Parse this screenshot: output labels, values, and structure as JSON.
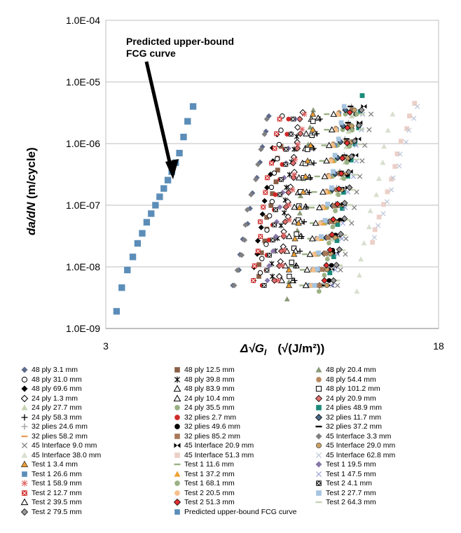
{
  "chart_data": {
    "type": "scatter",
    "title": "",
    "ylabel_italic": "da/dN",
    "ylabel_rest": " (m/cycle)",
    "xlabel_italic": "Δ√G",
    "xlabel_sub": "I",
    "xlabel_rest": "(√(J/m²))",
    "x_scale": "log",
    "y_scale": "log",
    "xlim": [
      3,
      18
    ],
    "ylim": [
      1e-09,
      0.0001
    ],
    "x_tick_labels": [
      "3",
      "18"
    ],
    "y_tick_labels": [
      "1.0E-09",
      "1.0E-08",
      "1.0E-07",
      "1.0E-06",
      "1.0E-05",
      "1.0E-04"
    ],
    "grid": "horizontal",
    "legend_position": "bottom",
    "annotation": {
      "line1": "Predicted upper-bound",
      "line2": "FCG curve"
    },
    "predicted_curve": {
      "name": "Predicted upper-bound FCG curve",
      "x": [
        3.18,
        3.27,
        3.37,
        3.47,
        3.56,
        3.65,
        3.74,
        3.83,
        3.92,
        4.01,
        4.1,
        4.19,
        4.28,
        4.37,
        4.46,
        4.56,
        4.66,
        4.8
      ],
      "y": [
        1.9e-09,
        4.6e-09,
        8.9e-09,
        1.45e-08,
        2.4e-08,
        3.5e-08,
        5.3e-08,
        7.3e-08,
        1e-07,
        1.37e-07,
        1.87e-07,
        2.55e-07,
        3.5e-07,
        4.9e-07,
        7e-07,
        1.28e-06,
        2.3e-06,
        4e-06
      ]
    },
    "series_ranges": [
      {
        "name": "48 ply 3.1 mm",
        "x": [
          6.0,
          7.2
        ],
        "y": [
          5e-09,
          2.8e-06
        ]
      },
      {
        "name": "48 ply 12.5 mm",
        "x": [
          6.8,
          7.7
        ],
        "y": [
          7e-09,
          9e-07
        ]
      },
      {
        "name": "48 ply 20.4 mm",
        "x": [
          7.9,
          9.2
        ],
        "y": [
          3e-09,
          3.5e-06
        ]
      },
      {
        "name": "48 ply 31.0 mm",
        "x": [
          6.9,
          7.8
        ],
        "y": [
          8e-09,
          2.8e-06
        ]
      },
      {
        "name": "48 ply 39.8 mm",
        "x": [
          7.3,
          8.4
        ],
        "y": [
          7e-09,
          1.3e-06
        ]
      },
      {
        "name": "48 ply 54.4 mm",
        "x": [
          9.0,
          10.5
        ],
        "y": [
          5e-09,
          3.2e-06
        ]
      },
      {
        "name": "48 ply 69.6 mm",
        "x": [
          6.6,
          7.5
        ],
        "y": [
          6e-09,
          1.4e-06
        ]
      },
      {
        "name": "48 ply 83.9 mm",
        "x": [
          7.8,
          9.0
        ],
        "y": [
          6e-09,
          2.5e-06
        ]
      },
      {
        "name": "48 ply 101.2 mm",
        "x": [
          8.0,
          9.2
        ],
        "y": [
          7e-09,
          2.3e-06
        ]
      },
      {
        "name": "24 ply 1.3 mm",
        "x": [
          7.6,
          8.6
        ],
        "y": [
          7e-09,
          3.2e-06
        ]
      },
      {
        "name": "24 ply 10.4 mm",
        "x": [
          8.2,
          9.4
        ],
        "y": [
          6e-09,
          2.6e-06
        ]
      },
      {
        "name": "24 ply 20.9 mm",
        "x": [
          7.5,
          8.6
        ],
        "y": [
          6e-09,
          2.5e-06
        ]
      },
      {
        "name": "24 ply 27.7 mm",
        "x": [
          9.6,
          11.3
        ],
        "y": [
          5e-09,
          2.8e-06
        ]
      },
      {
        "name": "24 ply 35.5 mm",
        "x": [
          9.2,
          10.8
        ],
        "y": [
          5e-09,
          3e-06
        ]
      },
      {
        "name": "24 plies 48.9 mm",
        "x": [
          10.0,
          12.0
        ],
        "y": [
          8e-09,
          6e-06
        ]
      },
      {
        "name": "24 ply 58.3 mm",
        "x": [
          8.3,
          9.5
        ],
        "y": [
          6e-09,
          2.5e-06
        ]
      },
      {
        "name": "32 plies 2.7 mm",
        "x": [
          7.0,
          8.0
        ],
        "y": [
          5e-09,
          2.5e-06
        ]
      },
      {
        "name": "32 plies 11.7 mm",
        "x": [
          9.4,
          11.0
        ],
        "y": [
          5e-09,
          3.5e-06
        ]
      },
      {
        "name": "32 plies 24.6 mm",
        "x": [
          9.6,
          11.2
        ],
        "y": [
          5e-09,
          4e-06
        ]
      },
      {
        "name": "32 plies 49.6 mm",
        "x": [
          10.0,
          11.5
        ],
        "y": [
          6e-09,
          3e-06
        ]
      },
      {
        "name": "32 plies 37.2 mm",
        "x": [
          9.8,
          11.3
        ],
        "y": [
          5e-09,
          4e-06
        ]
      },
      {
        "name": "32 plies 58.2 mm",
        "x": [
          9.9,
          11.4
        ],
        "y": [
          5e-09,
          3.5e-06
        ]
      },
      {
        "name": "32 plies 85.2 mm",
        "x": [
          9.5,
          11.2
        ],
        "y": [
          5e-09,
          3.5e-06
        ]
      },
      {
        "name": "45 Interface 3.3 mm",
        "x": [
          6.0,
          7.1
        ],
        "y": [
          5e-09,
          2.5e-06
        ]
      },
      {
        "name": "45 Interface 9.0 mm",
        "x": [
          10.5,
          12.5
        ],
        "y": [
          5e-09,
          3e-06
        ]
      },
      {
        "name": "45 Interface 20.9 mm",
        "x": [
          10.0,
          12.0
        ],
        "y": [
          5e-09,
          4e-06
        ]
      },
      {
        "name": "45 Interface 29.0 mm",
        "x": [
          9.8,
          11.5
        ],
        "y": [
          5e-09,
          3.5e-06
        ]
      },
      {
        "name": "45 Interface 38.0 mm",
        "x": [
          11.5,
          14.0
        ],
        "y": [
          4e-09,
          3e-06
        ]
      },
      {
        "name": "45 Interface 51.3 mm",
        "x": [
          12.5,
          15.8
        ],
        "y": [
          2.5e-08,
          4.5e-06
        ]
      },
      {
        "name": "45 Interface 62.8 mm",
        "x": [
          12.8,
          16.0
        ],
        "y": [
          3e-08,
          4e-06
        ]
      },
      {
        "name": "Test 1 3.4 mm",
        "x": [
          8.0,
          9.2
        ],
        "y": [
          5e-09,
          3e-06
        ]
      },
      {
        "name": "Test 1 11.6 mm",
        "x": [
          8.6,
          9.9
        ],
        "y": [
          5e-09,
          3e-06
        ]
      },
      {
        "name": "Test 1 19.5 mm",
        "x": [
          7.2,
          8.3
        ],
        "y": [
          6e-09,
          2.5e-06
        ]
      },
      {
        "name": "Test 1 26.6 mm",
        "x": [
          9.0,
          10.5
        ],
        "y": [
          5e-09,
          3e-06
        ]
      },
      {
        "name": "Test 1 37.2 mm",
        "x": [
          9.1,
          10.6
        ],
        "y": [
          5e-09,
          3e-06
        ]
      },
      {
        "name": "Test 1 47.5 mm",
        "x": [
          10.2,
          12.0
        ],
        "y": [
          5e-09,
          3e-06
        ]
      },
      {
        "name": "Test 1 58.9 mm",
        "x": [
          7.6,
          8.7
        ],
        "y": [
          6e-09,
          3e-06
        ]
      },
      {
        "name": "Test 1 68.1 mm",
        "x": [
          9.5,
          11.5
        ],
        "y": [
          4e-09,
          3e-06
        ]
      },
      {
        "name": "Test 2 4.1 mm",
        "x": [
          7.0,
          8.2
        ],
        "y": [
          5e-09,
          2.5e-06
        ]
      },
      {
        "name": "Test 2 12.7 mm",
        "x": [
          6.6,
          7.6
        ],
        "y": [
          6e-09,
          2.5e-06
        ]
      },
      {
        "name": "Test 2 20.5 mm",
        "x": [
          9.0,
          10.5
        ],
        "y": [
          5e-09,
          3e-06
        ]
      },
      {
        "name": "Test 2 27.7 mm",
        "x": [
          9.2,
          10.8
        ],
        "y": [
          5e-09,
          4e-06
        ]
      },
      {
        "name": "Test 2 39.5 mm",
        "x": [
          8.8,
          10.3
        ],
        "y": [
          5e-09,
          3e-06
        ]
      },
      {
        "name": "Test 2 51.3 mm",
        "x": [
          9.8,
          11.2
        ],
        "y": [
          6e-09,
          3.2e-06
        ]
      },
      {
        "name": "Test 2 64.3 mm",
        "x": [
          10.5,
          12.0
        ],
        "y": [
          6e-09,
          3e-06
        ]
      },
      {
        "name": "Test 2 79.5 mm",
        "x": [
          10.2,
          11.8
        ],
        "y": [
          6e-09,
          3.5e-06
        ]
      }
    ]
  },
  "legend": {
    "columns": [
      [
        {
          "label": "48 ply 3.1 mm",
          "marker": "diamond",
          "color": "#5e6b8a"
        },
        {
          "label": "48 ply 31.0 mm",
          "marker": "circle-open",
          "color": "#000000"
        },
        {
          "label": "48 ply 69.6 mm",
          "marker": "diamond",
          "color": "#000000"
        },
        {
          "label": "24 ply 1.3 mm",
          "marker": "diamond-open",
          "color": "#000000"
        },
        {
          "label": "24 ply 27.7 mm",
          "marker": "triangle",
          "color": "#c6d3b4"
        },
        {
          "label": "24 ply 58.3 mm",
          "marker": "plus",
          "color": "#000000"
        },
        {
          "label": "32 plies 24.6 mm",
          "marker": "plus",
          "color": "#9a9a9a"
        },
        {
          "label": "32 plies 58.2 mm",
          "marker": "dash",
          "color": "#e8a060"
        },
        {
          "label": "45 Interface 9.0 mm",
          "marker": "x",
          "color": "#808080"
        },
        {
          "label": "45 Interface 38.0 mm",
          "marker": "triangle",
          "color": "#d8dfcf"
        },
        {
          "label": "Test 1 3.4 mm",
          "marker": "triangle-edged",
          "color": "#f0a030"
        },
        {
          "label": "Test 1 26.6 mm",
          "marker": "square",
          "color": "#5b8db8"
        },
        {
          "label": "Test 1 58.9 mm",
          "marker": "star",
          "color": "#e06060"
        },
        {
          "label": "Test 2 12.7 mm",
          "marker": "square-x",
          "color": "#d02828"
        },
        {
          "label": "Test 2 39.5 mm",
          "marker": "triangle-open",
          "color": "#000000"
        },
        {
          "label": "Test 2 79.5 mm",
          "marker": "diamond-edged",
          "color": "#9a9a9a"
        }
      ],
      [
        {
          "label": "48 ply 12.5 mm",
          "marker": "square",
          "color": "#8a6048"
        },
        {
          "label": "48 ply 39.8 mm",
          "marker": "asterisk",
          "color": "#000000"
        },
        {
          "label": "48 ply 83.9 mm",
          "marker": "triangle-open",
          "color": "#000000"
        },
        {
          "label": "24 ply 10.4 mm",
          "marker": "triangle-open",
          "color": "#000000"
        },
        {
          "label": "24 ply 35.5 mm",
          "marker": "circle",
          "color": "#9bb184"
        },
        {
          "label": "32 plies 2.7 mm",
          "marker": "circle",
          "color": "#d02828"
        },
        {
          "label": "32 plies 49.6 mm",
          "marker": "circle",
          "color": "#000000"
        },
        {
          "label": "32 plies 85.2 mm",
          "marker": "square",
          "color": "#a87858"
        },
        {
          "label": "45 Interface 20.9 mm",
          "marker": "bowtie",
          "color": "#000000"
        },
        {
          "label": "45 Interface 51.3 mm",
          "marker": "square",
          "color": "#ecd0c8"
        },
        {
          "label": "Test 1 11.6 mm",
          "marker": "dash",
          "color": "#9bb184"
        },
        {
          "label": "Test 1 37.2 mm",
          "marker": "triangle",
          "color": "#f0a030"
        },
        {
          "label": "Test 1 68.1 mm",
          "marker": "circle",
          "color": "#9bb184"
        },
        {
          "label": "Test 2 20.5 mm",
          "marker": "circle",
          "color": "#f5c08c"
        },
        {
          "label": "Test 2 51.3 mm",
          "marker": "diamond-edged",
          "color": "#e83030"
        },
        {
          "label": "Predicted upper-bound FCG curve",
          "marker": "square",
          "color": "#5b8db8"
        }
      ],
      [
        {
          "label": "48 ply 20.4 mm",
          "marker": "triangle",
          "color": "#8a9a78"
        },
        {
          "label": "48 ply 54.4 mm",
          "marker": "circle",
          "color": "#b8895e"
        },
        {
          "label": "48 ply 101.2 mm",
          "marker": "square-open",
          "color": "#000000"
        },
        {
          "label": "24 ply 20.9 mm",
          "marker": "diamond-edged",
          "color": "#e07070"
        },
        {
          "label": "24 plies 48.9 mm",
          "marker": "square",
          "color": "#1a8a7a"
        },
        {
          "label": "32 plies 11.7 mm",
          "marker": "diamond-edged",
          "color": "#4a6a8a"
        },
        {
          "label": "32 plies 37.2 mm",
          "marker": "dash",
          "color": "#000000"
        },
        {
          "label": "45 Interface 3.3 mm",
          "marker": "diamond",
          "color": "#808080"
        },
        {
          "label": "45 Interface 29.0 mm",
          "marker": "circle-edged",
          "color": "#c9a062"
        },
        {
          "label": "45 Interface 62.8 mm",
          "marker": "x",
          "color": "#c0c8d8"
        },
        {
          "label": "Test 1 19.5 mm",
          "marker": "diamond",
          "color": "#8878a8"
        },
        {
          "label": "Test 1 47.5 mm",
          "marker": "x",
          "color": "#a0a8d8"
        },
        {
          "label": "Test 2 4.1 mm",
          "marker": "square-x",
          "color": "#202020"
        },
        {
          "label": "Test 2 27.7 mm",
          "marker": "square",
          "color": "#a6c4e0"
        },
        {
          "label": "Test 2 64.3 mm",
          "marker": "dash",
          "color": "#c6d3b4"
        }
      ]
    ]
  }
}
